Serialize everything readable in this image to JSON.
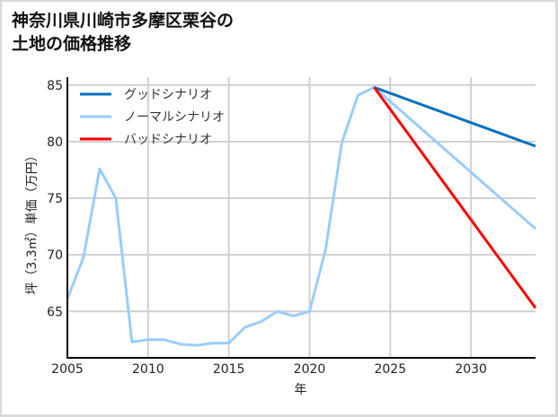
{
  "title_line1": "神奈川県川崎市多摩区栗谷の",
  "title_line2": "土地の価格推移",
  "chart_data": {
    "type": "line",
    "title": "神奈川県川崎市多摩区栗谷の土地の価格推移",
    "xlabel": "年",
    "ylabel": "坪（3.3㎡）単価（万円）",
    "xlim": [
      2005,
      2034
    ],
    "ylim": [
      60.9,
      85.7
    ],
    "xticks": [
      2005,
      2010,
      2015,
      2020,
      2025,
      2030
    ],
    "yticks": [
      65,
      70,
      75,
      80,
      85
    ],
    "grid": true,
    "legend_position": "upper left",
    "series": [
      {
        "name": "ノーマルシナリオ",
        "color": "#99ccff",
        "x": [
          2005,
          2006,
          2007,
          2008,
          2009,
          2010,
          2011,
          2012,
          2013,
          2014,
          2015,
          2016,
          2017,
          2018,
          2019,
          2020,
          2021,
          2022,
          2023,
          2024,
          2034
        ],
        "y": [
          66.1,
          69.8,
          77.6,
          75.0,
          62.3,
          62.5,
          62.5,
          62.1,
          62.0,
          62.2,
          62.2,
          63.6,
          64.1,
          65.0,
          64.6,
          65.0,
          70.5,
          79.9,
          84.1,
          84.8,
          72.3
        ]
      },
      {
        "name": "グッドシナリオ",
        "color": "#0070c0",
        "x": [
          2024,
          2034
        ],
        "y": [
          84.8,
          79.6
        ]
      },
      {
        "name": "バッドシナリオ",
        "color": "#ff0000",
        "x": [
          2024,
          2034
        ],
        "y": [
          84.8,
          65.3
        ]
      }
    ]
  },
  "legend": [
    "グッドシナリオ",
    "ノーマルシナリオ",
    "バッドシナリオ"
  ]
}
